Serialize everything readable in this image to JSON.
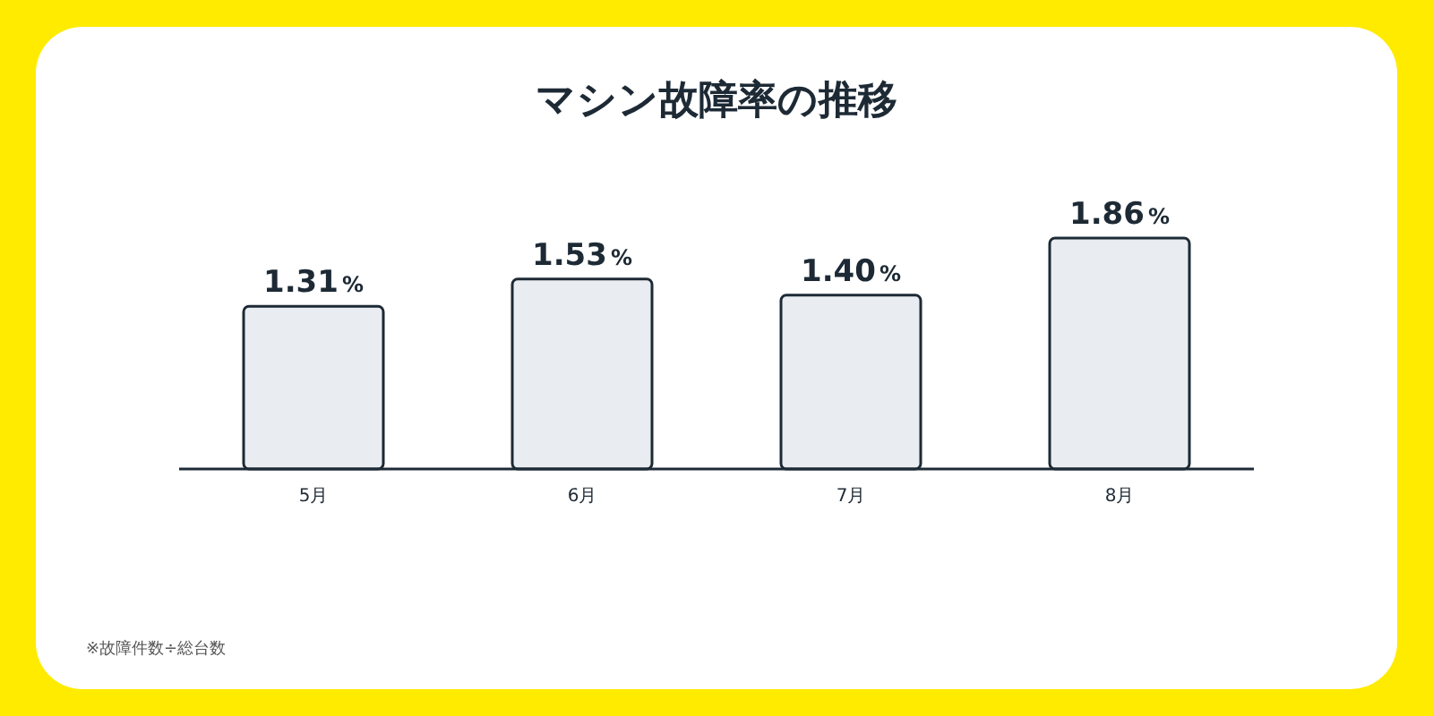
{
  "chart_data": {
    "type": "bar",
    "title": "マシン故障率の推移",
    "categories": [
      "5月",
      "6月",
      "7月",
      "8月"
    ],
    "values": [
      1.31,
      1.53,
      1.4,
      1.86
    ],
    "value_labels": [
      "1.31%",
      "1.53%",
      "1.40%",
      "1.86%"
    ],
    "color": "#e9edf1",
    "annotations": [
      "※故障件数÷総台数"
    ]
  }
}
